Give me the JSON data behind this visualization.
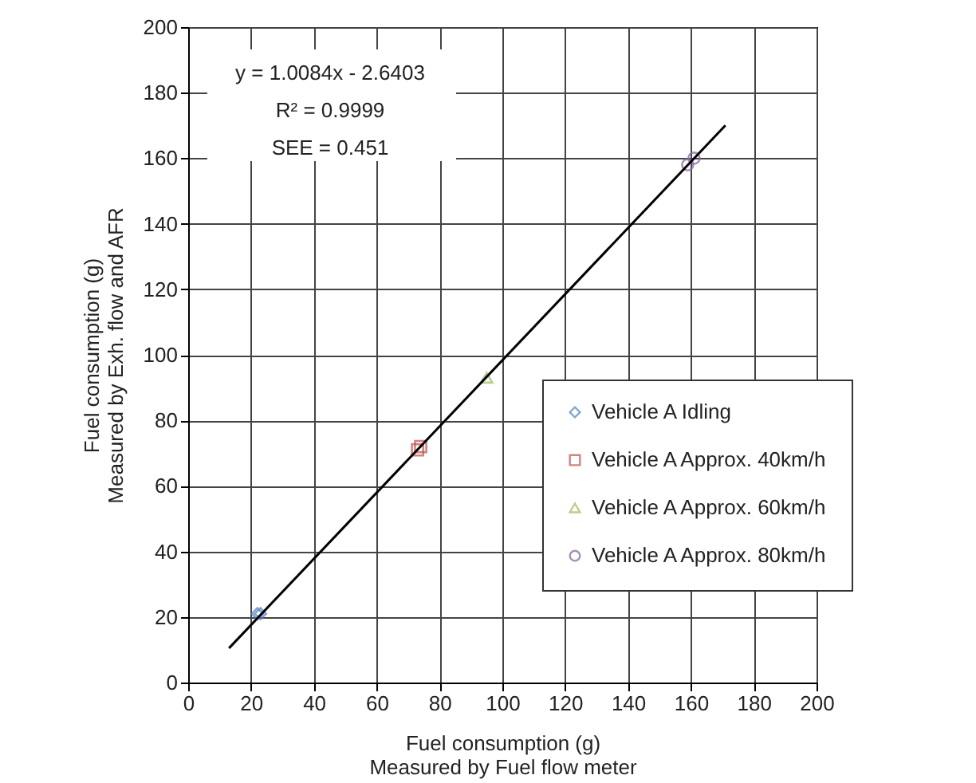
{
  "chart_data": {
    "type": "scatter",
    "xlabel": "Fuel consumption (g)\nMeasured by Fuel flow meter",
    "ylabel": "Fuel consumption (g)\nMeasured by Exh. flow and AFR",
    "annotations": [
      "y = 1.0084x - 2.6403",
      "R² = 0.9999",
      "SEE = 0.451"
    ],
    "series": [
      {
        "name": "Vehicle A Idling",
        "color": "#4f81bd",
        "marker": "diamond",
        "x": [
          22,
          23
        ],
        "values": [
          21,
          21
        ]
      },
      {
        "name": "Vehicle A Approx. 40km/h",
        "color": "#c0504d",
        "marker": "square",
        "x": [
          73,
          74
        ],
        "values": [
          71,
          72
        ]
      },
      {
        "name": "Vehicle A Approx. 60km/h",
        "color": "#9bbb59",
        "marker": "triangle",
        "x": [
          95
        ],
        "values": [
          93
        ]
      },
      {
        "name": "Vehicle A Approx. 80km/h",
        "color": "#8064a2",
        "marker": "circle",
        "x": [
          159,
          161
        ],
        "values": [
          158,
          160
        ]
      },
      {
        "type": "line",
        "color": "#000000",
        "x": [
          13,
          171
        ],
        "values": [
          10.5,
          170
        ]
      }
    ],
    "xlim": [
      0,
      200
    ],
    "ylim": [
      0,
      200
    ],
    "xticks": [
      0,
      20,
      40,
      60,
      80,
      100,
      120,
      140,
      160,
      180,
      200
    ],
    "yticks": [
      0,
      20,
      40,
      60,
      80,
      100,
      120,
      140,
      160,
      180,
      200
    ],
    "grid": true,
    "legend": "bottom right"
  }
}
